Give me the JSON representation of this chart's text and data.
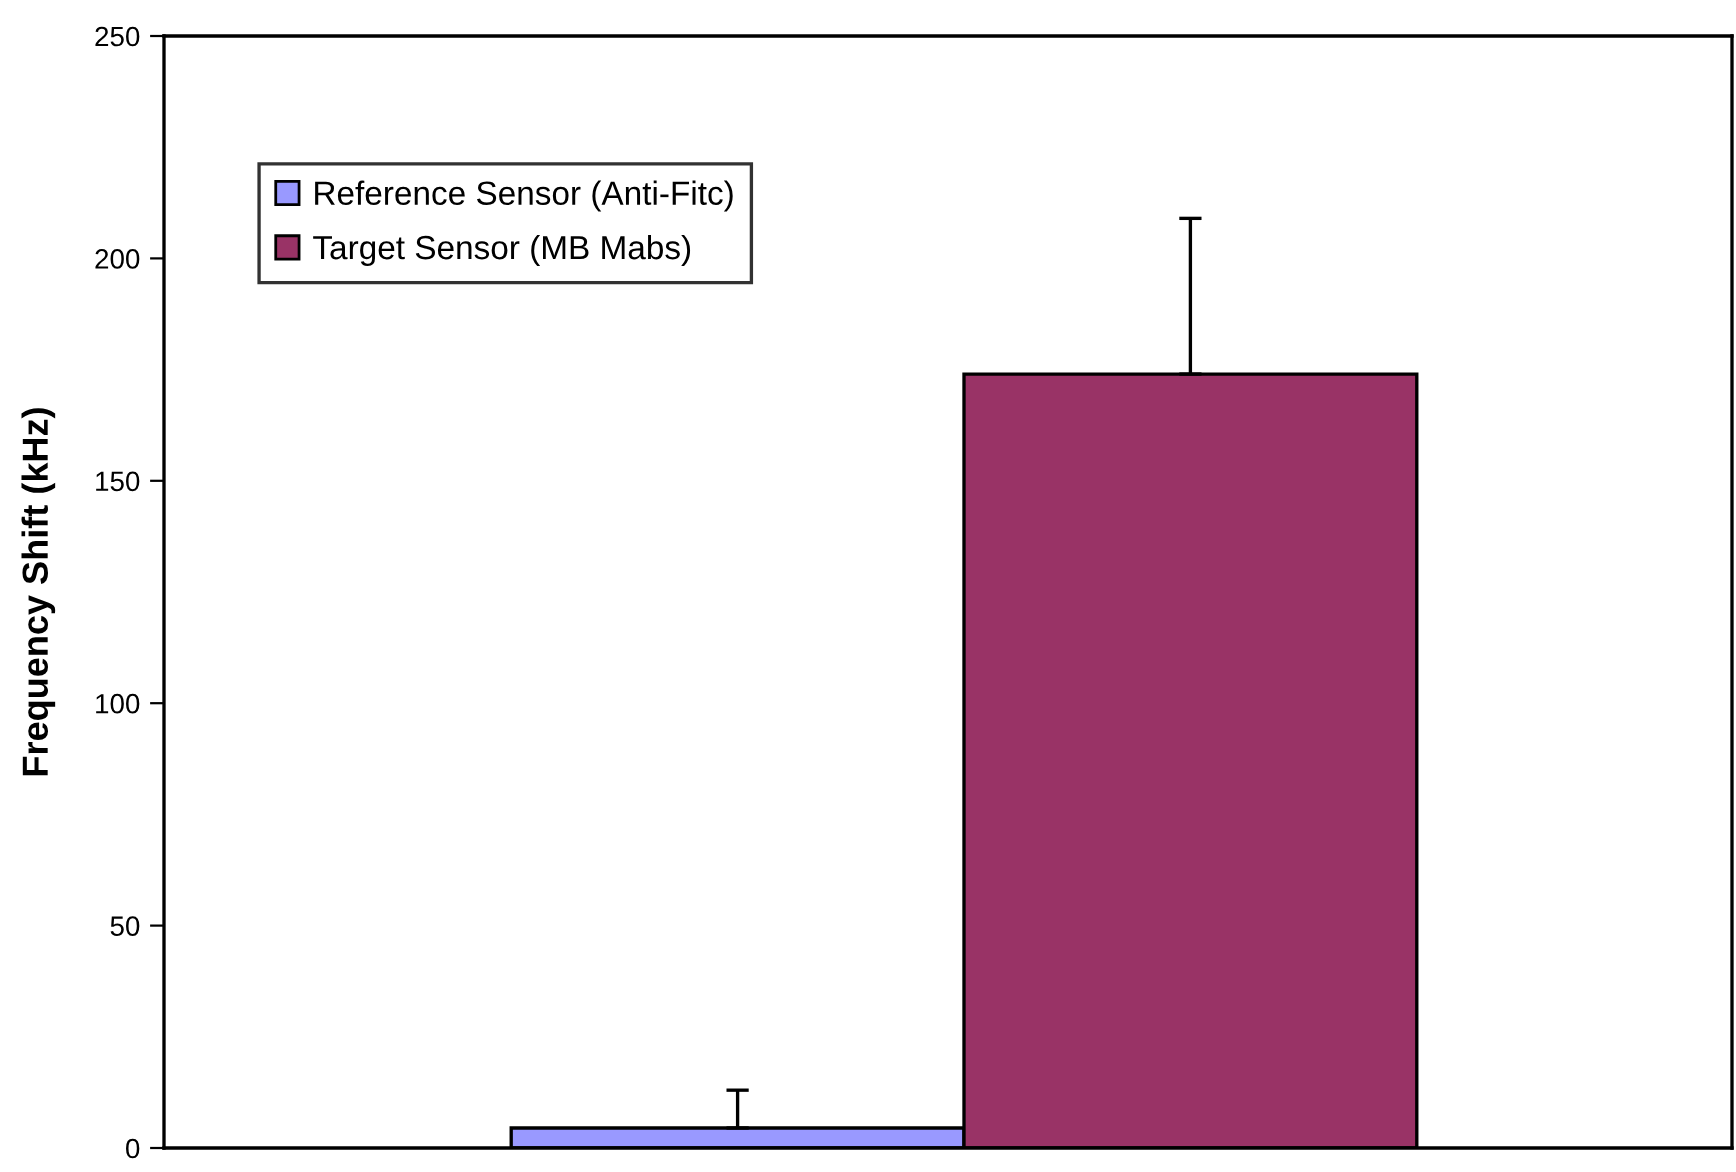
{
  "chart_data": {
    "type": "bar",
    "ylabel": "Frequency Shift (kHz)",
    "categories": [
      null
    ],
    "series": [
      {
        "name": "Reference Sensor (Anti-Fitc)",
        "color": "#9999ff",
        "values": [
          4.5
        ],
        "errors": [
          8.5
        ]
      },
      {
        "name": "Target Sensor (MB Mabs)",
        "color": "#993366",
        "values": [
          174
        ],
        "errors": [
          35
        ]
      }
    ],
    "ylim": [
      0,
      250
    ],
    "yticks": [
      0,
      50,
      100,
      150,
      200,
      250
    ],
    "grid": false,
    "legend": "top left",
    "tick_labels": "y"
  }
}
